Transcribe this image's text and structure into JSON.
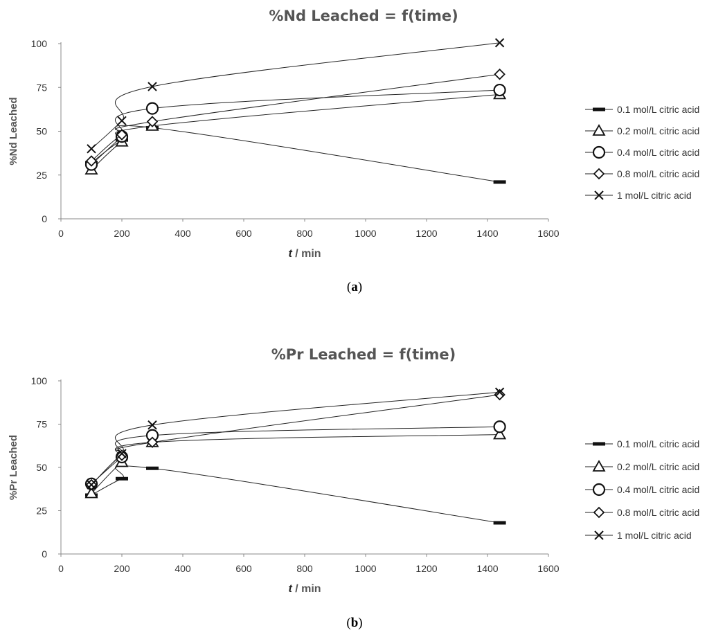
{
  "chart_data": [
    {
      "type": "line",
      "panel_label": "a",
      "title": "%Nd Leached = f(time)",
      "xlabel_var": "t",
      "xlabel_rest": " / min",
      "ylabel": "%Nd Leached",
      "xlim": [
        0,
        1600
      ],
      "ylim": [
        0,
        100
      ],
      "xticks": [
        0,
        200,
        400,
        600,
        800,
        1000,
        1200,
        1400,
        1600
      ],
      "yticks": [
        0,
        25,
        50,
        75,
        100
      ],
      "grid": false,
      "legend_position": "right",
      "x": [
        100,
        200,
        300,
        1440
      ],
      "series": [
        {
          "name": "0.1 mol/L citric acid",
          "marker": "dash",
          "values": [
            32,
            45,
            52,
            21
          ]
        },
        {
          "name": "0.2 mol/L citric acid",
          "marker": "triangle",
          "values": [
            28,
            44,
            53,
            71
          ]
        },
        {
          "name": "0.4 mol/L citric acid",
          "marker": "circle",
          "values": [
            31,
            47,
            63,
            73.5
          ]
        },
        {
          "name": "0.8 mol/L citric acid",
          "marker": "diamond",
          "values": [
            33,
            48,
            55.5,
            82.5
          ]
        },
        {
          "name": "1 mol/L citric acid",
          "marker": "x",
          "values": [
            40,
            56,
            75.5,
            100.5
          ]
        }
      ]
    },
    {
      "type": "line",
      "panel_label": "b",
      "title": "%Pr Leached = f(time)",
      "xlabel_var": "t",
      "xlabel_rest": " / min",
      "ylabel": "%Pr Leached",
      "xlim": [
        0,
        1600
      ],
      "ylim": [
        0,
        100
      ],
      "xticks": [
        0,
        200,
        400,
        600,
        800,
        1000,
        1200,
        1400,
        1600
      ],
      "yticks": [
        0,
        25,
        50,
        75,
        100
      ],
      "grid": false,
      "legend_position": "right",
      "x": [
        100,
        200,
        300,
        1440
      ],
      "series": [
        {
          "name": "0.1 mol/L citric acid",
          "marker": "dash",
          "values": [
            34,
            43.5,
            49.5,
            18
          ]
        },
        {
          "name": "0.2 mol/L citric acid",
          "marker": "triangle",
          "values": [
            35,
            53,
            64.5,
            69
          ]
        },
        {
          "name": "0.4 mol/L citric acid",
          "marker": "circle",
          "values": [
            40.5,
            56,
            68.5,
            73.5
          ]
        },
        {
          "name": "0.8 mol/L citric acid",
          "marker": "diamond",
          "values": [
            40,
            57,
            64.5,
            92
          ]
        },
        {
          "name": "1 mol/L citric acid",
          "marker": "x",
          "values": [
            40,
            58,
            74.5,
            93.5
          ]
        }
      ]
    }
  ]
}
